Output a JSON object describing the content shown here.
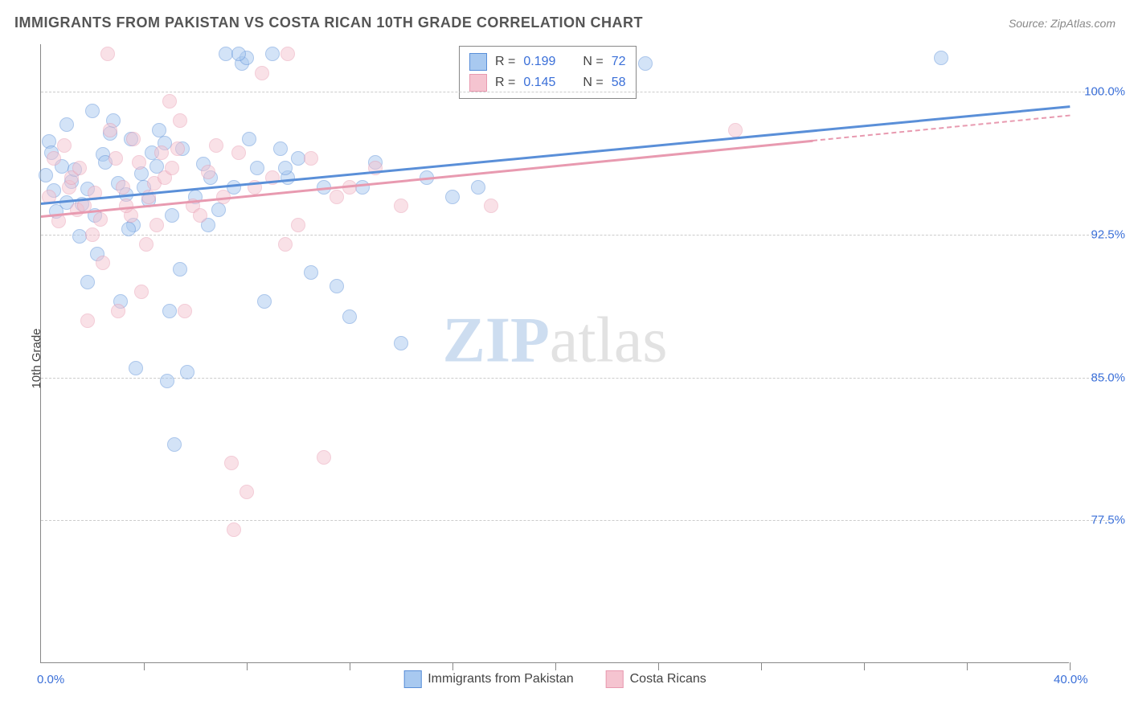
{
  "title": "IMMIGRANTS FROM PAKISTAN VS COSTA RICAN 10TH GRADE CORRELATION CHART",
  "source": "Source: ZipAtlas.com",
  "ylabel": "10th Grade",
  "watermark": {
    "part1": "ZIP",
    "part2": "atlas"
  },
  "chart": {
    "type": "scatter",
    "background_color": "#ffffff",
    "grid_color": "#cccccc",
    "axis_color": "#888888",
    "xlim": [
      0,
      40
    ],
    "ylim": [
      70,
      102.5
    ],
    "ytick_labels": [
      "100.0%",
      "92.5%",
      "85.0%",
      "77.5%"
    ],
    "ytick_values": [
      100,
      92.5,
      85,
      77.5
    ],
    "xtick_labels": [
      "0.0%",
      "40.0%"
    ],
    "xtick_values": [
      0,
      40
    ],
    "xtick_minor": [
      4,
      8,
      12,
      16,
      20,
      24,
      28,
      32,
      36,
      40
    ],
    "tick_label_color": "#3a6fd8",
    "tick_fontsize": 15,
    "marker_size": 18,
    "marker_opacity": 0.5,
    "series": [
      {
        "name": "Immigrants from Pakistan",
        "color_fill": "#a8c9f0",
        "color_stroke": "#5a8fd8",
        "R": "0.199",
        "N": "72",
        "trend": {
          "x1": 0,
          "y1": 94.2,
          "x2": 40,
          "y2": 99.3,
          "dash_from_x": null,
          "line_width": 3
        },
        "points": [
          [
            0.2,
            95.6
          ],
          [
            0.5,
            94.8
          ],
          [
            0.8,
            96.1
          ],
          [
            0.3,
            97.4
          ],
          [
            1.0,
            94.2
          ],
          [
            1.2,
            95.3
          ],
          [
            0.6,
            93.7
          ],
          [
            1.5,
            92.4
          ],
          [
            0.4,
            96.8
          ],
          [
            1.8,
            94.9
          ],
          [
            2.1,
            93.5
          ],
          [
            1.3,
            95.9
          ],
          [
            2.4,
            96.7
          ],
          [
            1.6,
            94.1
          ],
          [
            2.7,
            97.8
          ],
          [
            1.0,
            98.3
          ],
          [
            2.0,
            99.0
          ],
          [
            3.0,
            95.2
          ],
          [
            2.2,
            91.5
          ],
          [
            3.3,
            94.6
          ],
          [
            2.5,
            96.3
          ],
          [
            3.6,
            93.0
          ],
          [
            1.8,
            90.0
          ],
          [
            3.9,
            95.7
          ],
          [
            2.8,
            98.5
          ],
          [
            4.2,
            94.3
          ],
          [
            3.1,
            89.0
          ],
          [
            4.5,
            96.1
          ],
          [
            3.4,
            92.8
          ],
          [
            4.8,
            97.3
          ],
          [
            3.7,
            85.5
          ],
          [
            5.1,
            93.5
          ],
          [
            4.0,
            95.0
          ],
          [
            5.4,
            90.7
          ],
          [
            4.3,
            96.8
          ],
          [
            5.7,
            85.3
          ],
          [
            4.6,
            98.0
          ],
          [
            6.0,
            94.5
          ],
          [
            4.9,
            84.8
          ],
          [
            6.3,
            96.2
          ],
          [
            5.2,
            81.5
          ],
          [
            6.6,
            95.5
          ],
          [
            5.5,
            97.0
          ],
          [
            6.9,
            93.8
          ],
          [
            7.2,
            102.0
          ],
          [
            7.5,
            95.0
          ],
          [
            7.8,
            101.5
          ],
          [
            8.1,
            97.5
          ],
          [
            8.4,
            96.0
          ],
          [
            8.7,
            89.0
          ],
          [
            9.0,
            102.0
          ],
          [
            9.3,
            97.0
          ],
          [
            9.6,
            95.5
          ],
          [
            10.0,
            96.5
          ],
          [
            10.5,
            90.5
          ],
          [
            11.0,
            95.0
          ],
          [
            11.5,
            89.8
          ],
          [
            12.0,
            88.2
          ],
          [
            12.5,
            95.0
          ],
          [
            13.0,
            96.3
          ],
          [
            14.0,
            86.8
          ],
          [
            15.0,
            95.5
          ],
          [
            16.0,
            94.5
          ],
          [
            8.0,
            101.8
          ],
          [
            9.5,
            96.0
          ],
          [
            17.0,
            95.0
          ],
          [
            7.7,
            102.0
          ],
          [
            6.5,
            93.0
          ],
          [
            5.0,
            88.5
          ],
          [
            3.5,
            97.5
          ],
          [
            35.0,
            101.8
          ],
          [
            23.5,
            101.5
          ]
        ]
      },
      {
        "name": "Costa Ricans",
        "color_fill": "#f5c4d0",
        "color_stroke": "#e89ab0",
        "R": "0.145",
        "N": "58",
        "trend": {
          "x1": 0,
          "y1": 93.5,
          "x2": 40,
          "y2": 98.8,
          "dash_from_x": 30,
          "line_width": 3
        },
        "points": [
          [
            0.3,
            94.5
          ],
          [
            0.7,
            93.2
          ],
          [
            1.1,
            95.0
          ],
          [
            0.5,
            96.5
          ],
          [
            1.4,
            93.8
          ],
          [
            0.9,
            97.2
          ],
          [
            1.7,
            94.0
          ],
          [
            1.2,
            95.5
          ],
          [
            2.0,
            92.5
          ],
          [
            1.5,
            96.0
          ],
          [
            2.3,
            93.3
          ],
          [
            1.8,
            88.0
          ],
          [
            2.6,
            102.0
          ],
          [
            2.1,
            94.7
          ],
          [
            2.9,
            96.5
          ],
          [
            2.4,
            91.0
          ],
          [
            3.2,
            95.0
          ],
          [
            2.7,
            98.0
          ],
          [
            3.5,
            93.5
          ],
          [
            3.0,
            88.5
          ],
          [
            3.8,
            96.3
          ],
          [
            3.3,
            94.0
          ],
          [
            4.1,
            92.0
          ],
          [
            3.6,
            97.5
          ],
          [
            4.4,
            95.2
          ],
          [
            3.9,
            89.5
          ],
          [
            4.7,
            96.8
          ],
          [
            4.2,
            94.5
          ],
          [
            5.0,
            99.5
          ],
          [
            4.5,
            93.0
          ],
          [
            5.3,
            97.0
          ],
          [
            4.8,
            95.5
          ],
          [
            5.6,
            88.5
          ],
          [
            5.1,
            96.0
          ],
          [
            5.9,
            94.0
          ],
          [
            5.4,
            98.5
          ],
          [
            6.2,
            93.5
          ],
          [
            6.5,
            95.8
          ],
          [
            6.8,
            97.2
          ],
          [
            7.1,
            94.5
          ],
          [
            7.4,
            80.5
          ],
          [
            7.7,
            96.8
          ],
          [
            8.0,
            79.0
          ],
          [
            8.3,
            95.0
          ],
          [
            8.6,
            101.0
          ],
          [
            7.5,
            77.0
          ],
          [
            9.0,
            95.5
          ],
          [
            9.5,
            92.0
          ],
          [
            10.0,
            93.0
          ],
          [
            10.5,
            96.5
          ],
          [
            11.0,
            80.8
          ],
          [
            11.5,
            94.5
          ],
          [
            12.0,
            95.0
          ],
          [
            13.0,
            96.0
          ],
          [
            14.0,
            94.0
          ],
          [
            17.5,
            94.0
          ],
          [
            27.0,
            98.0
          ],
          [
            9.6,
            102.0
          ]
        ]
      }
    ]
  },
  "legend_top": {
    "rows": [
      {
        "swatch": "blue",
        "r_label": "R =",
        "r_value": "0.199",
        "n_label": "N =",
        "n_value": "72"
      },
      {
        "swatch": "pink",
        "r_label": "R =",
        "r_value": "0.145",
        "n_label": "N =",
        "n_value": "58"
      }
    ]
  },
  "legend_bottom": {
    "items": [
      {
        "swatch": "blue",
        "label": "Immigrants from Pakistan"
      },
      {
        "swatch": "pink",
        "label": "Costa Ricans"
      }
    ]
  }
}
